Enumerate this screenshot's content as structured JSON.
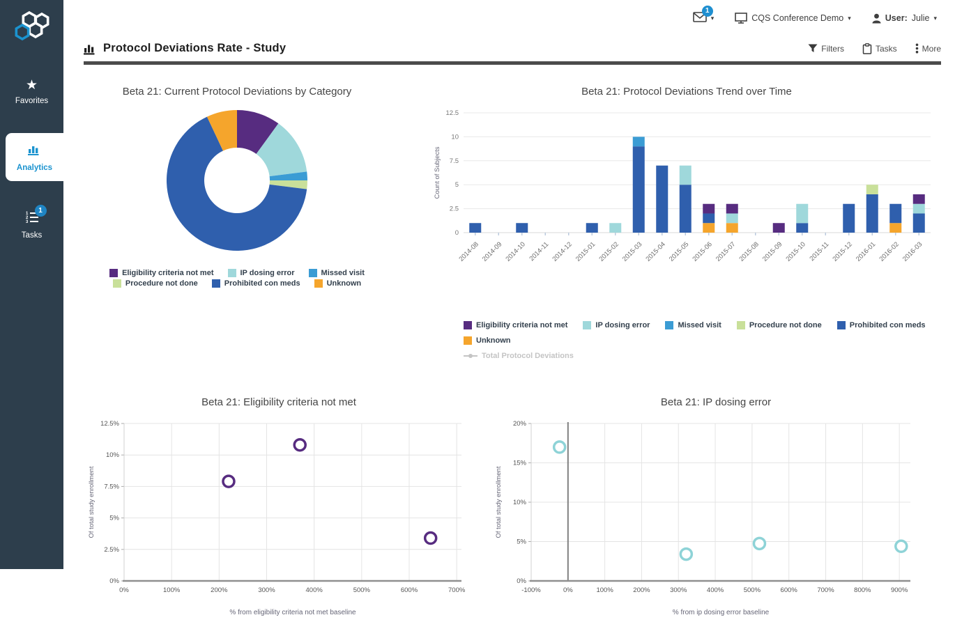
{
  "colors": {
    "sidebar_bg": "#2d3e4c",
    "accent_blue": "#1b93cf",
    "badge_blue": "#1f85c4",
    "title_rule": "#4b4b4b"
  },
  "sidebar": {
    "items": [
      {
        "label": "Favorites",
        "icon": "star",
        "active": false
      },
      {
        "label": "Analytics",
        "icon": "bar-chart",
        "active": true
      },
      {
        "label": "Tasks",
        "icon": "numbered-list",
        "active": false,
        "badge": "1"
      }
    ]
  },
  "header": {
    "mail_badge": "1",
    "study_selector": "CQS Conference Demo",
    "user_label": "User:",
    "user_name": "Julie"
  },
  "toolbar": {
    "title": "Protocol Deviations Rate - Study",
    "filters_label": "Filters",
    "tasks_label": "Tasks",
    "more_label": "More"
  },
  "chart_data": [
    {
      "type": "donut",
      "title": "Beta 21: Current Protocol Deviations by Category",
      "segments": [
        {
          "label": "Eligibility criteria not met",
          "value": 10,
          "color": "#572c80"
        },
        {
          "label": "IP dosing error",
          "value": 13,
          "color": "#9fd8db"
        },
        {
          "label": "Missed visit",
          "value": 2,
          "color": "#3b9cd4"
        },
        {
          "label": "Procedure not done",
          "value": 2,
          "color": "#c9e09a"
        },
        {
          "label": "Prohibited con meds",
          "value": 66,
          "color": "#2f5fad"
        },
        {
          "label": "Unknown",
          "value": 7,
          "color": "#f5a52c"
        }
      ],
      "legend_rows": [
        [
          "Eligibility criteria not met",
          "IP dosing error",
          "Missed visit"
        ],
        [
          "Procedure not done",
          "Prohibited con meds",
          "Unknown"
        ]
      ]
    },
    {
      "type": "bar",
      "stacked": true,
      "title": "Beta 21: Protocol Deviations Trend over Time",
      "ylabel": "Count of Subjects",
      "ylim": [
        0,
        12.5
      ],
      "yticks": [
        0,
        2.5,
        5,
        7.5,
        10,
        12.5
      ],
      "categories": [
        "2014-08",
        "2014-09",
        "2014-10",
        "2014-11",
        "2014-12",
        "2015-01",
        "2015-02",
        "2015-03",
        "2015-04",
        "2015-05",
        "2015-06",
        "2015-07",
        "2015-08",
        "2015-09",
        "2015-10",
        "2015-11",
        "2015-12",
        "2016-01",
        "2016-02",
        "2016-03"
      ],
      "series": [
        {
          "name": "Unknown",
          "color": "#f5a52c",
          "values": [
            0,
            0,
            0,
            0,
            0,
            0,
            0,
            0,
            0,
            0,
            1,
            1,
            0,
            0,
            0,
            0,
            0,
            0,
            1,
            0
          ]
        },
        {
          "name": "Prohibited con meds",
          "color": "#2f5fad",
          "values": [
            1,
            0,
            1,
            0,
            0,
            1,
            0,
            9,
            7,
            5,
            1,
            0,
            0,
            0,
            1,
            0,
            3,
            4,
            2,
            2
          ]
        },
        {
          "name": "Procedure not done",
          "color": "#c9e09a",
          "values": [
            0,
            0,
            0,
            0,
            0,
            0,
            0,
            0,
            0,
            0,
            0,
            0,
            0,
            0,
            0,
            0,
            0,
            1,
            0,
            0
          ]
        },
        {
          "name": "Missed visit",
          "color": "#3b9cd4",
          "values": [
            0,
            0,
            0,
            0,
            0,
            0,
            0,
            1,
            0,
            0,
            0,
            0,
            0,
            0,
            0,
            0,
            0,
            0,
            0,
            0
          ]
        },
        {
          "name": "IP dosing error",
          "color": "#9fd8db",
          "values": [
            0,
            0,
            0,
            0,
            0,
            0,
            1,
            0,
            0,
            2,
            0,
            1,
            0,
            0,
            2,
            0,
            0,
            0,
            0,
            1
          ]
        },
        {
          "name": "Eligibility criteria not met",
          "color": "#572c80",
          "values": [
            0,
            0,
            0,
            0,
            0,
            0,
            0,
            0,
            0,
            0,
            1,
            1,
            0,
            1,
            0,
            0,
            0,
            0,
            0,
            1
          ]
        }
      ],
      "legend": [
        {
          "label": "Eligibility criteria not met",
          "color": "#572c80"
        },
        {
          "label": "IP dosing error",
          "color": "#9fd8db"
        },
        {
          "label": "Missed visit",
          "color": "#3b9cd4"
        },
        {
          "label": "Procedure not done",
          "color": "#c9e09a"
        },
        {
          "label": "Prohibited con meds",
          "color": "#2f5fad"
        },
        {
          "label": "Unknown",
          "color": "#f5a52c"
        }
      ],
      "disabled_legend": "Total Protocol Deviations"
    },
    {
      "type": "scatter",
      "title": "Beta 21: Eligibility criteria not met",
      "xlabel": "% from eligibility criteria not met baseline",
      "ylabel": "Of total study enrollment",
      "xlim": [
        0,
        710
      ],
      "ylim": [
        0,
        12.5
      ],
      "xticks": [
        0,
        100,
        200,
        300,
        400,
        500,
        600,
        700
      ],
      "yticks": [
        0,
        2.5,
        5,
        7.5,
        10,
        12.5
      ],
      "tick_suffix": "%",
      "color": "#572c80",
      "zero_line": false,
      "points": [
        [
          220,
          7.9
        ],
        [
          370,
          10.8
        ],
        [
          645,
          3.4
        ]
      ]
    },
    {
      "type": "scatter",
      "title": "Beta 21: IP dosing error",
      "xlabel": "% from ip dosing error baseline",
      "ylabel": "Of total study enrollment",
      "xlim": [
        -100,
        930
      ],
      "ylim": [
        0,
        20
      ],
      "xticks": [
        -100,
        0,
        100,
        200,
        300,
        400,
        500,
        600,
        700,
        800,
        900
      ],
      "yticks": [
        0,
        5,
        10,
        15,
        20
      ],
      "tick_suffix": "%",
      "color": "#8ed3d7",
      "zero_line": true,
      "points": [
        [
          -23,
          17
        ],
        [
          321,
          3.4
        ],
        [
          520,
          4.75
        ],
        [
          905,
          4.4
        ]
      ]
    }
  ]
}
